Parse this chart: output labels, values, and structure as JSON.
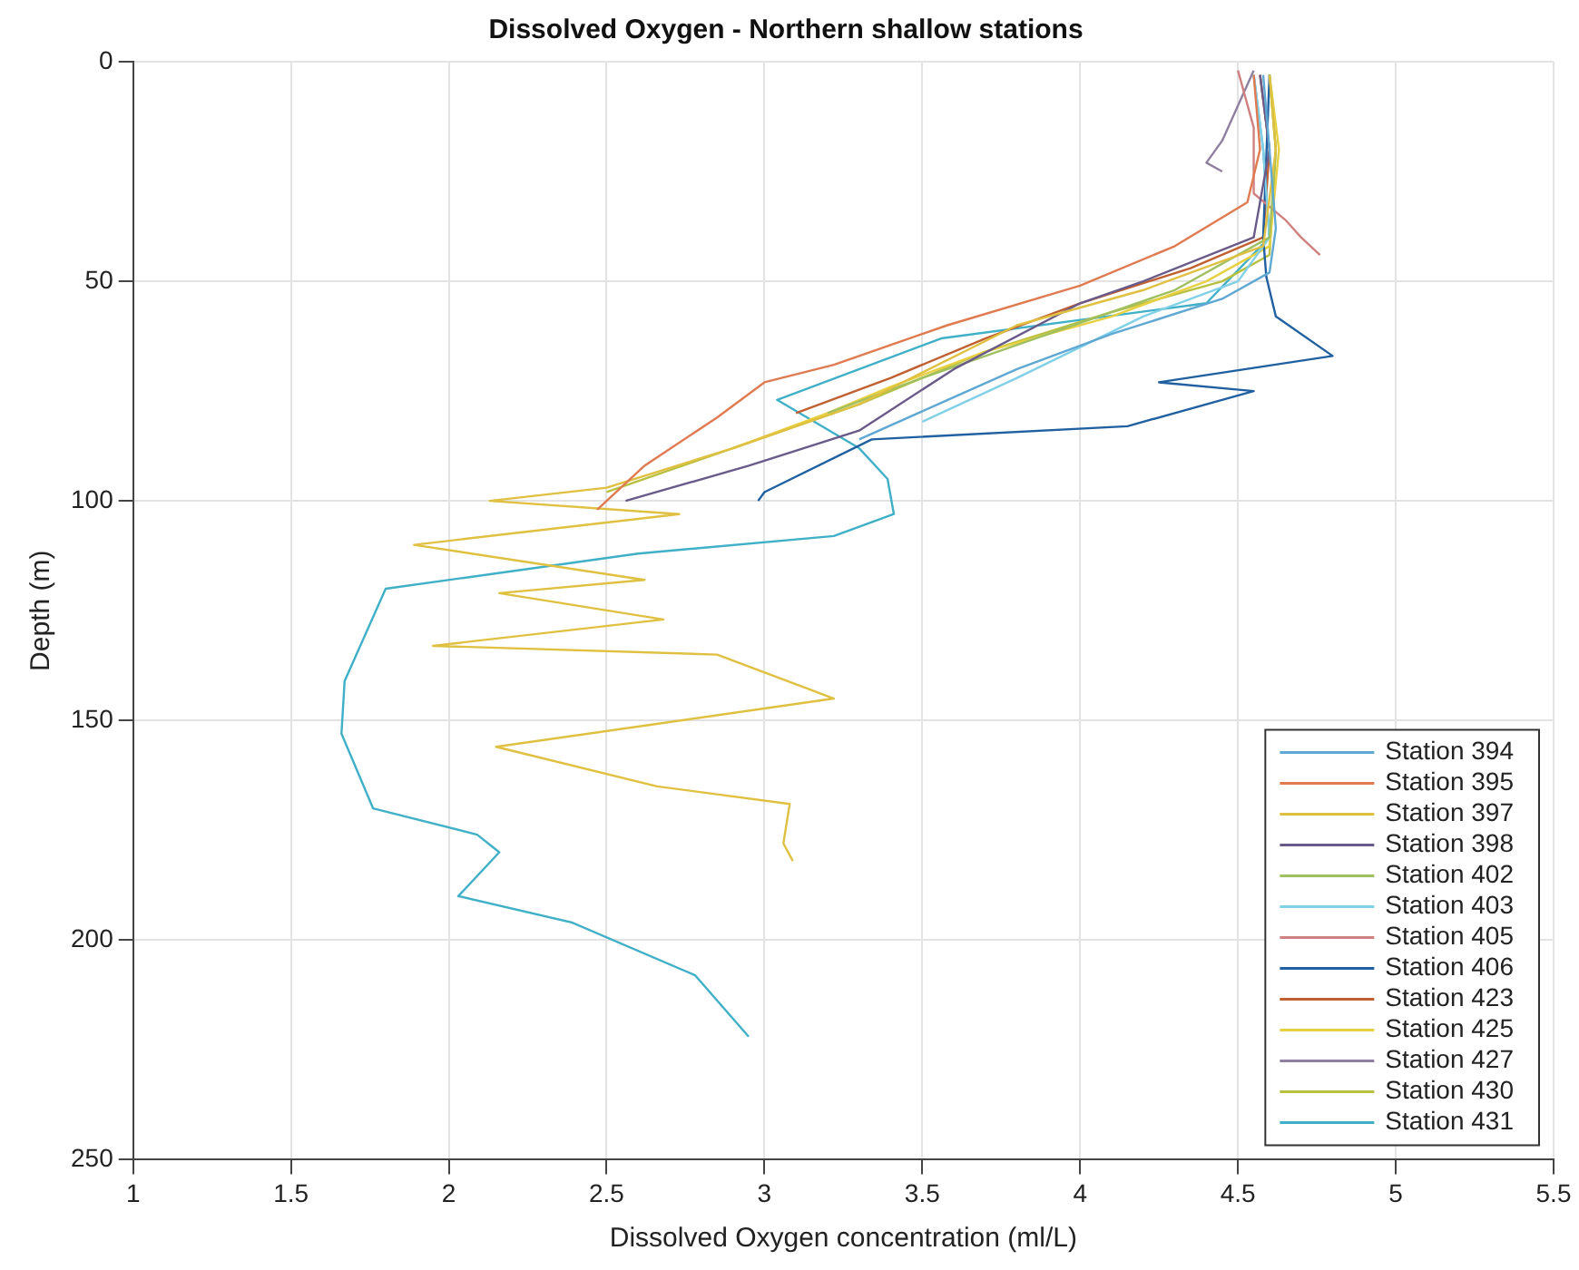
{
  "chart_data": {
    "type": "line",
    "title": "Dissolved Oxygen - Northern shallow stations",
    "xlabel": "Dissolved Oxygen concentration (ml/L)",
    "ylabel": "Depth (m)",
    "xlim": [
      1,
      5.5
    ],
    "xticks": [
      1,
      1.5,
      2,
      2.5,
      3,
      3.5,
      4,
      4.5,
      5,
      5.5
    ],
    "ylim": [
      250,
      0
    ],
    "yticks": [
      0,
      50,
      100,
      150,
      200,
      250
    ],
    "grid": true,
    "legend": "bottom right",
    "marker": "none",
    "line_style": "solid",
    "series": [
      {
        "name": "Station 394",
        "color": "#5fa8d3",
        "x": [
          4.58,
          4.6,
          4.62,
          4.6,
          4.45,
          4.1,
          3.8,
          3.55,
          3.3
        ],
        "values": [
          3,
          20,
          38,
          48,
          54,
          62,
          70,
          78,
          86
        ]
      },
      {
        "name": "Station 395",
        "color": "#e07a50",
        "x": [
          4.55,
          4.57,
          4.53,
          4.3,
          4.0,
          3.58,
          3.22,
          3.0,
          2.85,
          2.62,
          2.47
        ],
        "values": [
          3,
          20,
          32,
          42,
          51,
          60,
          69,
          73,
          81,
          92,
          102
        ]
      },
      {
        "name": "Station 397",
        "color": "#e0c040",
        "x": [
          4.6,
          4.62,
          4.58,
          4.2,
          3.8,
          3.3,
          2.9,
          2.5,
          2.13,
          2.73,
          1.89,
          2.62,
          2.16,
          2.68,
          1.95,
          2.85,
          3.22,
          2.15,
          2.66,
          3.08,
          3.06,
          3.09
        ],
        "values": [
          3,
          20,
          42,
          52,
          60,
          78,
          88,
          97,
          100,
          103,
          110,
          118,
          121,
          127,
          133,
          135,
          145,
          156,
          165,
          169,
          178,
          182
        ]
      },
      {
        "name": "Station 398",
        "color": "#6a5a8a",
        "x": [
          4.57,
          4.6,
          4.55,
          4.2,
          4.0,
          3.6,
          3.3,
          2.95,
          2.56
        ],
        "values": [
          3,
          20,
          40,
          50,
          55,
          70,
          84,
          92,
          100
        ]
      },
      {
        "name": "Station 402",
        "color": "#a0c060",
        "x": [
          4.6,
          4.62,
          4.6,
          4.3,
          3.9,
          3.5,
          3.2
        ],
        "values": [
          3,
          20,
          40,
          52,
          62,
          72,
          80
        ]
      },
      {
        "name": "Station 403",
        "color": "#80d0e8",
        "x": [
          4.55,
          4.58,
          4.6,
          4.5,
          4.2,
          3.8,
          3.5
        ],
        "values": [
          3,
          20,
          40,
          50,
          58,
          72,
          82
        ]
      },
      {
        "name": "Station 405",
        "color": "#d08080",
        "x": [
          4.5,
          4.55,
          4.55,
          4.65,
          4.7,
          4.76
        ],
        "values": [
          2,
          15,
          30,
          36,
          40,
          44
        ]
      },
      {
        "name": "Station 406",
        "color": "#2060a0",
        "x": [
          4.6,
          4.58,
          4.59,
          4.62,
          4.8,
          4.25,
          4.55,
          4.15,
          3.34,
          3.0,
          2.98
        ],
        "values": [
          3,
          40,
          49,
          58,
          67,
          73,
          75,
          83,
          86,
          98,
          100
        ]
      },
      {
        "name": "Station 423",
        "color": "#c06030",
        "x": [
          4.57,
          4.6,
          4.58,
          4.35,
          4.0,
          3.7,
          3.4,
          3.1
        ],
        "values": [
          3,
          20,
          40,
          47,
          55,
          63,
          72,
          80
        ]
      },
      {
        "name": "Station 425",
        "color": "#e8d040",
        "x": [
          4.6,
          4.63,
          4.6,
          4.4,
          4.1,
          3.7,
          3.4,
          3.2,
          2.9
        ],
        "values": [
          3,
          20,
          42,
          50,
          58,
          66,
          74,
          80,
          88
        ]
      },
      {
        "name": "Station 427",
        "color": "#9080a0",
        "x": [
          4.55,
          4.5,
          4.45,
          4.4,
          4.45
        ],
        "values": [
          2,
          10,
          18,
          23,
          25
        ]
      },
      {
        "name": "Station 430",
        "color": "#b8c040",
        "x": [
          4.6,
          4.62,
          4.6,
          4.45,
          4.1,
          3.7,
          3.3,
          2.9,
          2.5
        ],
        "values": [
          3,
          20,
          44,
          50,
          57,
          66,
          78,
          88,
          98
        ]
      },
      {
        "name": "Station 431",
        "color": "#40b0c8",
        "x": [
          4.55,
          4.58,
          4.6,
          4.4,
          3.56,
          3.04,
          3.3,
          3.39,
          3.41,
          3.22,
          2.6,
          1.8,
          1.67,
          1.66,
          1.76,
          2.09,
          2.16,
          2.03,
          2.39,
          2.78,
          2.95
        ],
        "values": [
          3,
          20,
          40,
          55,
          63,
          77,
          88,
          95,
          103,
          108,
          112,
          120,
          141,
          153,
          170,
          176,
          180,
          190,
          196,
          208,
          222
        ]
      }
    ]
  }
}
